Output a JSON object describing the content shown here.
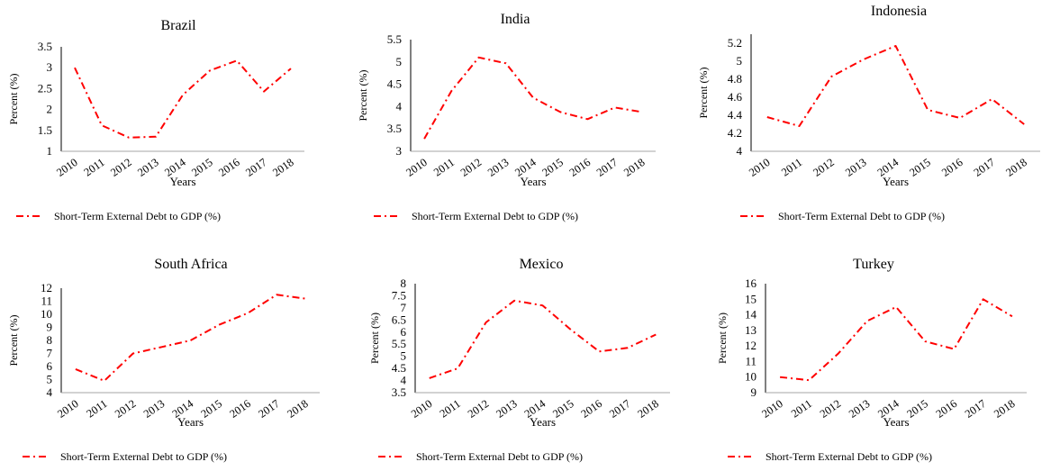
{
  "figure": {
    "chart_data": [
      {
        "type": "line",
        "title": "Brazil",
        "xlabel": "Years",
        "ylabel": "Percent (%)",
        "x": [
          "2010",
          "2011",
          "2012",
          "2013",
          "2014",
          "2015",
          "2016",
          "2017",
          "2018"
        ],
        "yticks": [
          "1",
          "1.5",
          "2",
          "2.5",
          "3",
          "3.5"
        ],
        "ylim": [
          1,
          3.5
        ],
        "series": [
          {
            "name": "Short-Term External Debt to GDP (%)",
            "color": "#ff0000",
            "style": "dash-dot",
            "values": [
              3.0,
              1.62,
              1.33,
              1.35,
              2.35,
              2.93,
              3.17,
              2.43,
              2.98
            ]
          }
        ],
        "legend": "bottom"
      },
      {
        "type": "line",
        "title": "India",
        "xlabel": "Years",
        "ylabel": "Percent (%)",
        "x": [
          "2010",
          "2011",
          "2012",
          "2013",
          "2014",
          "2015",
          "2016",
          "2017",
          "2018"
        ],
        "yticks": [
          "3",
          "3.5",
          "4",
          "4.5",
          "5",
          "5.5"
        ],
        "ylim": [
          3,
          5.5
        ],
        "series": [
          {
            "name": "Short-Term External Debt to GDP (%)",
            "color": "#ff0000",
            "style": "dash-dot",
            "values": [
              3.28,
              4.35,
              5.1,
              4.97,
              4.2,
              3.88,
              3.72,
              3.98,
              3.88
            ]
          }
        ],
        "legend": "bottom"
      },
      {
        "type": "line",
        "title": "Indonesia",
        "xlabel": "Years",
        "ylabel": "Percent (%)",
        "x": [
          "2010",
          "2011",
          "2012",
          "2013",
          "2014",
          "2015",
          "2016",
          "2017",
          "2018"
        ],
        "yticks": [
          "4",
          "4.2",
          "4.4",
          "4.6",
          "4.8",
          "5",
          "5.2"
        ],
        "ylim": [
          4,
          5.3
        ],
        "series": [
          {
            "name": "Short-Term External Debt to GDP (%)",
            "color": "#ff0000",
            "style": "dash-dot",
            "values": [
              4.38,
              4.28,
              4.83,
              5.02,
              5.17,
              4.46,
              4.37,
              4.58,
              4.3
            ]
          }
        ],
        "legend": "bottom"
      },
      {
        "type": "line",
        "title": "South Africa",
        "xlabel": "Years",
        "ylabel": "Percent (%)",
        "x": [
          "2010",
          "2011",
          "2012",
          "2013",
          "2014",
          "2015",
          "2016",
          "2017",
          "2018"
        ],
        "yticks": [
          "4",
          "5",
          "6",
          "7",
          "8",
          "9",
          "10",
          "11",
          "12"
        ],
        "ylim": [
          4,
          12
        ],
        "series": [
          {
            "name": "Short-Term External Debt to GDP (%)",
            "color": "#ff0000",
            "style": "dash-dot",
            "values": [
              5.8,
              4.9,
              7.0,
              7.5,
              8.0,
              9.2,
              10.1,
              11.5,
              11.2
            ]
          }
        ],
        "legend": "bottom"
      },
      {
        "type": "line",
        "title": "Mexico",
        "xlabel": "Years",
        "ylabel": "Percent (%)",
        "x": [
          "2010",
          "2011",
          "2012",
          "2013",
          "2014",
          "2015",
          "2016",
          "2017",
          "2018"
        ],
        "yticks": [
          "3.5",
          "4",
          "4.5",
          "5",
          "5.5",
          "6",
          "6.5",
          "7",
          "7.5",
          "8"
        ],
        "ylim": [
          3.5,
          8
        ],
        "series": [
          {
            "name": "Short-Term External Debt to GDP (%)",
            "color": "#ff0000",
            "style": "dash-dot",
            "values": [
              4.1,
              4.5,
              6.4,
              7.3,
              7.1,
              6.1,
              5.2,
              5.35,
              5.9
            ]
          }
        ],
        "legend": "bottom"
      },
      {
        "type": "line",
        "title": "Turkey",
        "xlabel": "Years",
        "ylabel": "Percent (%)",
        "x": [
          "2010",
          "2011",
          "2012",
          "2013",
          "2014",
          "2015",
          "2016",
          "2017",
          "2018"
        ],
        "yticks": [
          "9",
          "10",
          "11",
          "12",
          "13",
          "14",
          "15",
          "16"
        ],
        "ylim": [
          9,
          16
        ],
        "series": [
          {
            "name": "Short-Term External Debt to GDP (%)",
            "color": "#ff0000",
            "style": "dash-dot",
            "values": [
              10.0,
              9.8,
              11.5,
              13.6,
              14.5,
              12.3,
              11.8,
              15.0,
              13.9
            ]
          }
        ],
        "legend": "bottom"
      }
    ]
  }
}
